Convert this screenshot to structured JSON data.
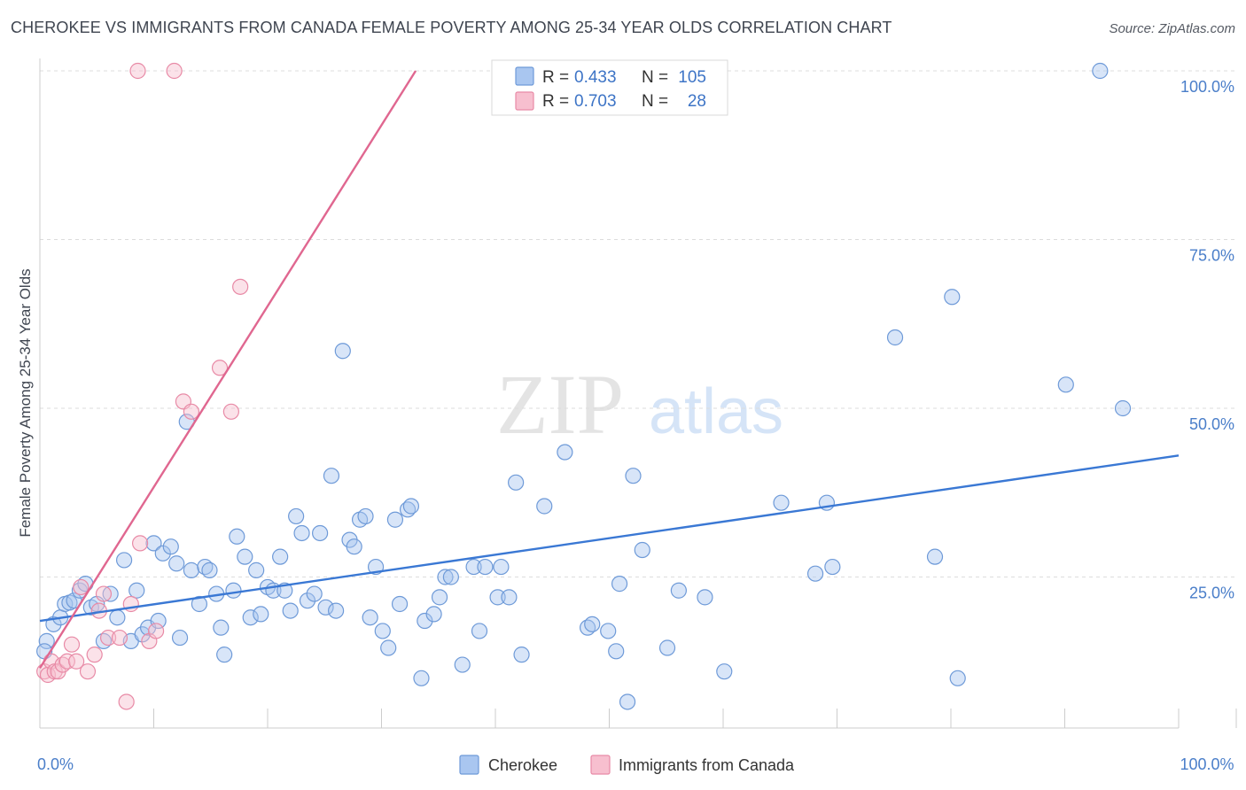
{
  "header": {
    "title": "CHEROKEE VS IMMIGRANTS FROM CANADA FEMALE POVERTY AMONG 25-34 YEAR OLDS CORRELATION CHART",
    "source": "Source: ZipAtlas.com"
  },
  "watermark": {
    "zip": "ZIP",
    "atlas": "atlas"
  },
  "legend": {
    "rows": [
      {
        "r_label": "R =",
        "r_value": "0.433",
        "n_label": "N =",
        "n_value": "105"
      },
      {
        "r_label": "R =",
        "r_value": "0.703",
        "n_label": "N =",
        "n_value": "28"
      }
    ]
  },
  "chart_data": {
    "type": "scatter",
    "title": "CHEROKEE VS IMMIGRANTS FROM CANADA FEMALE POVERTY AMONG 25-34 YEAR OLDS CORRELATION CHART",
    "xlabel": "",
    "ylabel": "Female Poverty Among 25-34 Year Olds",
    "xlim": [
      0,
      100
    ],
    "ylim": [
      0,
      105
    ],
    "x_tick_labels": [
      {
        "value": 0,
        "label": "0.0%"
      },
      {
        "value": 100,
        "label": "100.0%"
      }
    ],
    "y_tick_labels": [
      {
        "value": 25,
        "label": "25.0%"
      },
      {
        "value": 50,
        "label": "50.0%"
      },
      {
        "value": 75,
        "label": "75.0%"
      },
      {
        "value": 100,
        "label": "100.0%"
      }
    ],
    "x_minor_ticks": [
      0,
      10,
      20,
      30,
      40,
      50,
      60,
      70,
      80,
      90,
      100
    ],
    "grid": true,
    "colors": {
      "cherokee_fill": "#a9c6f0",
      "cherokee_stroke": "#6e9ad8",
      "cherokee_line": "#3a78d4",
      "canada_fill": "#f7bfcf",
      "canada_stroke": "#e88aa6",
      "canada_line": "#e06790",
      "grid": "#dcdcdc",
      "tick_text": "#4a7ec9"
    },
    "series": [
      {
        "name": "Cherokee",
        "r": 0.433,
        "n": 105,
        "trend": {
          "x": [
            0,
            100
          ],
          "y": [
            18.5,
            43.0
          ]
        },
        "points": [
          [
            0.6,
            15.5
          ],
          [
            1.2,
            18.0
          ],
          [
            1.8,
            19.0
          ],
          [
            2.2,
            21.0
          ],
          [
            2.6,
            21.2
          ],
          [
            3.0,
            21.5
          ],
          [
            3.5,
            23.0
          ],
          [
            4.0,
            24.0
          ],
          [
            4.5,
            20.5
          ],
          [
            5.0,
            21.0
          ],
          [
            5.6,
            15.5
          ],
          [
            6.2,
            22.5
          ],
          [
            6.8,
            19.0
          ],
          [
            7.4,
            27.5
          ],
          [
            8.0,
            15.5
          ],
          [
            8.5,
            23.0
          ],
          [
            9.0,
            16.5
          ],
          [
            9.5,
            17.5
          ],
          [
            10.0,
            30.0
          ],
          [
            10.4,
            18.5
          ],
          [
            10.8,
            28.5
          ],
          [
            11.5,
            29.5
          ],
          [
            12.0,
            27.0
          ],
          [
            12.3,
            16.0
          ],
          [
            12.9,
            48.0
          ],
          [
            13.3,
            26.0
          ],
          [
            14.0,
            21.0
          ],
          [
            14.5,
            26.5
          ],
          [
            14.9,
            26.0
          ],
          [
            15.5,
            22.5
          ],
          [
            15.9,
            17.5
          ],
          [
            16.2,
            13.5
          ],
          [
            17.0,
            23.0
          ],
          [
            17.3,
            31.0
          ],
          [
            18.0,
            28.0
          ],
          [
            18.5,
            19.0
          ],
          [
            19.0,
            26.0
          ],
          [
            19.4,
            19.5
          ],
          [
            20.0,
            23.5
          ],
          [
            20.5,
            23.0
          ],
          [
            21.1,
            28.0
          ],
          [
            21.5,
            23.0
          ],
          [
            22.0,
            20.0
          ],
          [
            22.5,
            34.0
          ],
          [
            23.0,
            31.5
          ],
          [
            23.5,
            21.5
          ],
          [
            24.1,
            22.5
          ],
          [
            24.6,
            31.5
          ],
          [
            25.1,
            20.5
          ],
          [
            25.6,
            40.0
          ],
          [
            26.0,
            20.0
          ],
          [
            26.6,
            58.5
          ],
          [
            27.2,
            30.5
          ],
          [
            27.6,
            29.5
          ],
          [
            28.1,
            33.5
          ],
          [
            28.6,
            34.0
          ],
          [
            29.0,
            19.0
          ],
          [
            29.5,
            26.5
          ],
          [
            30.1,
            17.0
          ],
          [
            30.6,
            14.5
          ],
          [
            31.2,
            33.5
          ],
          [
            31.6,
            21.0
          ],
          [
            32.3,
            35.0
          ],
          [
            32.6,
            35.5
          ],
          [
            33.5,
            10.0
          ],
          [
            33.8,
            18.5
          ],
          [
            34.6,
            19.5
          ],
          [
            35.1,
            22.0
          ],
          [
            35.6,
            25.0
          ],
          [
            36.1,
            25.0
          ],
          [
            37.1,
            12.0
          ],
          [
            38.1,
            26.5
          ],
          [
            38.6,
            17.0
          ],
          [
            39.1,
            26.5
          ],
          [
            40.2,
            22.0
          ],
          [
            40.5,
            26.5
          ],
          [
            41.2,
            22.0
          ],
          [
            41.8,
            39.0
          ],
          [
            42.3,
            13.5
          ],
          [
            44.3,
            35.5
          ],
          [
            46.1,
            43.5
          ],
          [
            48.1,
            17.5
          ],
          [
            48.5,
            18.0
          ],
          [
            49.9,
            17.0
          ],
          [
            50.6,
            14.0
          ],
          [
            50.9,
            24.0
          ],
          [
            51.6,
            6.5
          ],
          [
            52.1,
            40.0
          ],
          [
            52.9,
            29.0
          ],
          [
            55.1,
            14.5
          ],
          [
            56.1,
            23.0
          ],
          [
            58.4,
            22.0
          ],
          [
            60.1,
            11.0
          ],
          [
            65.1,
            36.0
          ],
          [
            68.1,
            25.5
          ],
          [
            69.1,
            36.0
          ],
          [
            69.6,
            26.5
          ],
          [
            75.1,
            60.5
          ],
          [
            78.6,
            28.0
          ],
          [
            80.1,
            66.5
          ],
          [
            80.6,
            10.0
          ],
          [
            90.1,
            53.5
          ],
          [
            93.1,
            100.0
          ],
          [
            95.1,
            50.0
          ],
          [
            0.4,
            14.0
          ]
        ]
      },
      {
        "name": "Immigrants from Canada",
        "r": 0.703,
        "n": 28,
        "trend": {
          "x": [
            0,
            33.0
          ],
          "y": [
            11.5,
            100.0
          ]
        },
        "points": [
          [
            0.4,
            11.0
          ],
          [
            0.7,
            10.5
          ],
          [
            1.0,
            12.5
          ],
          [
            1.3,
            11.0
          ],
          [
            1.6,
            11.0
          ],
          [
            2.0,
            12.0
          ],
          [
            2.4,
            12.5
          ],
          [
            2.8,
            15.0
          ],
          [
            3.2,
            12.5
          ],
          [
            3.6,
            23.5
          ],
          [
            4.2,
            11.0
          ],
          [
            4.8,
            13.5
          ],
          [
            5.2,
            20.0
          ],
          [
            5.6,
            22.5
          ],
          [
            6.0,
            16.0
          ],
          [
            7.0,
            16.0
          ],
          [
            7.6,
            6.5
          ],
          [
            8.0,
            21.0
          ],
          [
            8.8,
            30.0
          ],
          [
            9.6,
            15.5
          ],
          [
            10.2,
            17.0
          ],
          [
            12.6,
            51.0
          ],
          [
            13.3,
            49.5
          ],
          [
            15.8,
            56.0
          ],
          [
            16.8,
            49.5
          ],
          [
            17.6,
            68.0
          ],
          [
            8.6,
            100.0
          ],
          [
            11.8,
            100.0
          ]
        ]
      }
    ]
  },
  "bottom_legend": {
    "items": [
      {
        "label": "Cherokee"
      },
      {
        "label": "Immigrants from Canada"
      }
    ]
  }
}
